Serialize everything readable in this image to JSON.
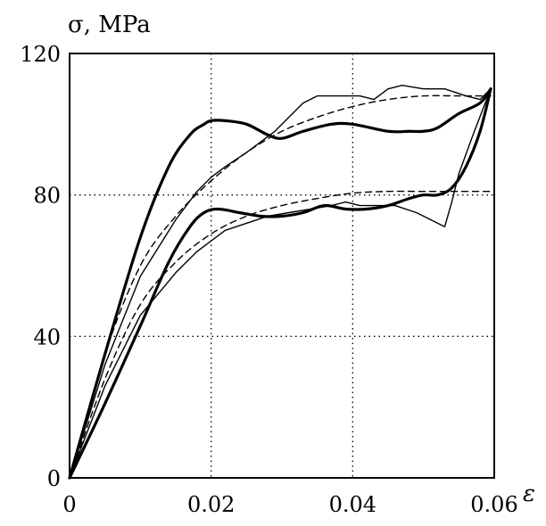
{
  "chart_data": {
    "type": "line",
    "ylabel": "σ, MPa",
    "xlabel": "ε",
    "xlim": [
      0,
      0.06
    ],
    "ylim": [
      0,
      120
    ],
    "xticks": [
      0,
      0.02,
      0.04,
      0.06
    ],
    "xtick_labels": [
      "0",
      "0.02",
      "0.04",
      "0.06"
    ],
    "yticks": [
      0,
      40,
      80,
      120
    ],
    "ytick_labels": [
      "0",
      "40",
      "80",
      "120"
    ],
    "grid": true,
    "legend": "none",
    "series": [
      {
        "style": "thick",
        "x": [
          0,
          0.005,
          0.01,
          0.014,
          0.017,
          0.019,
          0.02,
          0.022,
          0.025,
          0.028,
          0.03,
          0.033,
          0.037,
          0.04,
          0.045,
          0.048,
          0.05,
          0.052,
          0.055,
          0.058,
          0.0595
        ],
        "y": [
          0,
          35,
          68,
          88,
          97,
          100,
          101,
          101,
          100,
          97,
          96,
          98,
          100,
          100,
          98,
          98,
          98,
          99,
          103,
          106,
          110
        ]
      },
      {
        "style": "thick",
        "x": [
          0,
          0.005,
          0.01,
          0.014,
          0.017,
          0.019,
          0.021,
          0.024,
          0.027,
          0.03,
          0.033,
          0.036,
          0.039,
          0.042,
          0.045,
          0.048,
          0.05,
          0.052,
          0.054,
          0.056,
          0.058,
          0.0595
        ],
        "y": [
          0,
          21,
          43,
          61,
          71,
          75,
          76,
          75,
          74,
          74,
          75,
          77,
          76,
          76,
          77,
          79,
          80,
          80,
          82,
          88,
          98,
          110
        ]
      },
      {
        "style": "thin",
        "x": [
          0,
          0.005,
          0.01,
          0.015,
          0.018,
          0.02,
          0.022,
          0.025,
          0.027,
          0.029,
          0.031,
          0.033,
          0.035,
          0.038,
          0.041,
          0.043,
          0.045,
          0.047,
          0.05,
          0.053,
          0.056,
          0.058,
          0.0595
        ],
        "y": [
          0,
          32,
          57,
          73,
          81,
          85,
          88,
          92,
          95,
          98,
          102,
          106,
          108,
          108,
          108,
          107,
          110,
          111,
          110,
          110,
          108,
          107,
          110
        ]
      },
      {
        "style": "thin",
        "x": [
          0,
          0.005,
          0.01,
          0.015,
          0.018,
          0.02,
          0.022,
          0.025,
          0.028,
          0.031,
          0.034,
          0.037,
          0.039,
          0.041,
          0.043,
          0.046,
          0.049,
          0.051,
          0.053,
          0.054,
          0.055,
          0.057,
          0.0595
        ],
        "y": [
          0,
          26,
          46,
          58,
          64,
          67,
          70,
          72,
          74,
          75,
          76,
          77,
          78,
          77,
          77,
          77,
          75,
          73,
          71,
          78,
          86,
          97,
          110
        ]
      },
      {
        "style": "dashed",
        "x": [
          0,
          0.005,
          0.01,
          0.015,
          0.02,
          0.025,
          0.03,
          0.035,
          0.04,
          0.045,
          0.05,
          0.055,
          0.0595
        ],
        "y": [
          0,
          35,
          60,
          74,
          84,
          92,
          98,
          102,
          105,
          107,
          108,
          108,
          108
        ]
      },
      {
        "style": "dashed",
        "x": [
          0,
          0.005,
          0.01,
          0.015,
          0.02,
          0.025,
          0.03,
          0.035,
          0.04,
          0.045,
          0.05,
          0.055,
          0.0595
        ],
        "y": [
          0,
          28,
          49,
          61,
          69,
          74,
          77,
          79,
          80.5,
          81,
          81,
          81,
          81
        ]
      }
    ]
  }
}
